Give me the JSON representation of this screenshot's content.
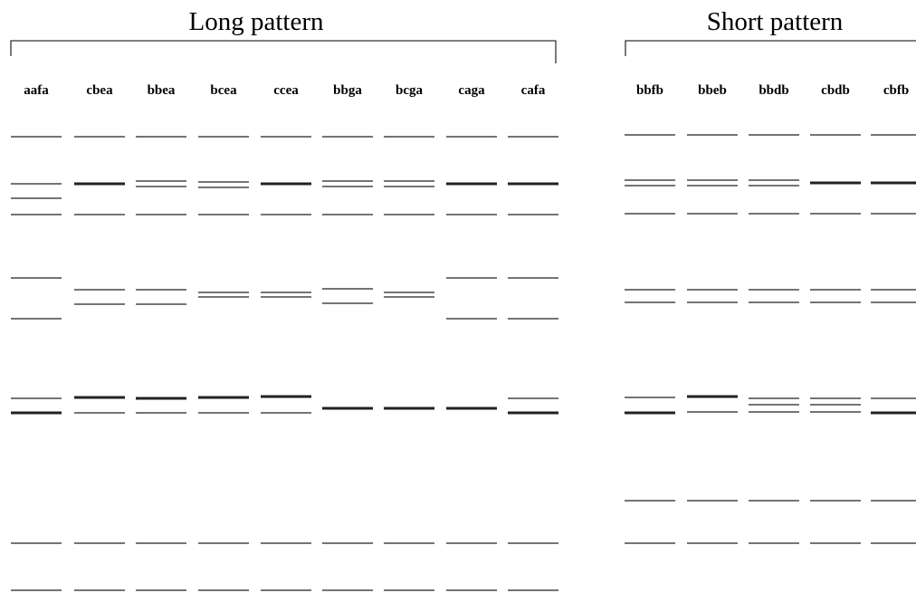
{
  "long_pattern": {
    "title": "Long pattern",
    "lanes": [
      "aafa",
      "cbea",
      "bbea",
      "bcea",
      "ccea",
      "bbga",
      "bcga",
      "caga",
      "cafa"
    ]
  },
  "short_pattern": {
    "title": "Short pattern",
    "lanes": [
      "bbfb",
      "bbeb",
      "bbdb",
      "cbdb",
      "cbfb"
    ]
  }
}
